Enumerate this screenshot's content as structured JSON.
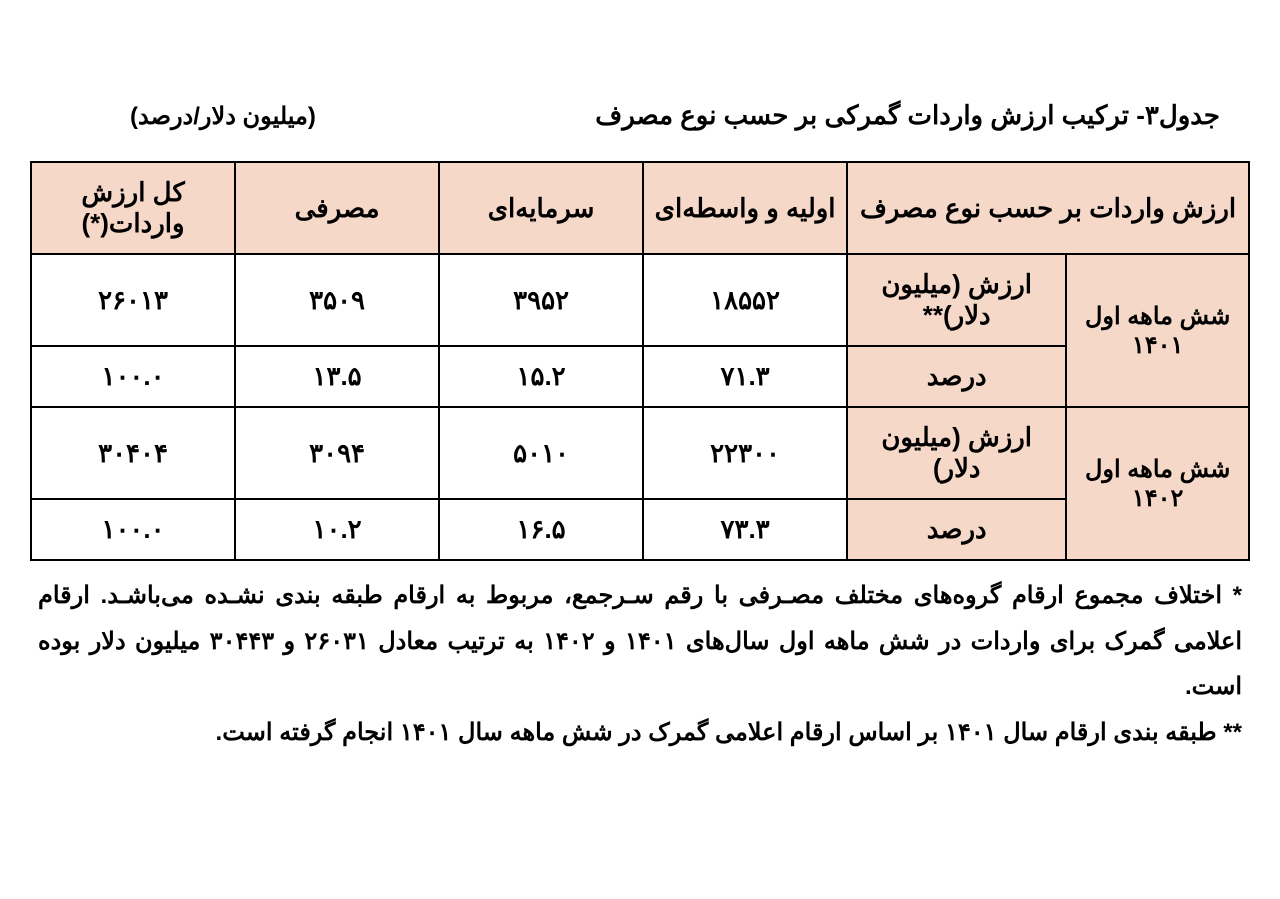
{
  "title": "جدول۳- ترکیب ارزش واردات گمرکی بر حسب نوع مصرف",
  "unit_label": "(میلیون دلار/درصد)",
  "colors": {
    "header_bg": "#f5d8c8",
    "border": "#000000",
    "text": "#000000",
    "page_bg": "#ffffff"
  },
  "table": {
    "columns": [
      "ارزش واردات بر حسب نوع مصرف",
      "اولیه و واسطه‌ای",
      "سرمایه‌ای",
      "مصرفی",
      "کل ارزش واردات(*)"
    ],
    "col_widths_pct": [
      33,
      16.75,
      16.75,
      16.75,
      16.75
    ],
    "header_fontsize": 26,
    "cell_fontsize": 26,
    "groups": [
      {
        "period": "شش ماهه اول ۱۴۰۱",
        "rows": [
          {
            "metric": "ارزش (میلیون دلار)**",
            "values": [
              "۱۸۵۵۲",
              "۳۹۵۲",
              "۳۵۰۹",
              "۲۶۰۱۳"
            ]
          },
          {
            "metric": "درصد",
            "values": [
              "۷۱.۳",
              "۱۵.۲",
              "۱۳.۵",
              "۱۰۰.۰"
            ]
          }
        ]
      },
      {
        "period": "شش ماهه اول ۱۴۰۲",
        "rows": [
          {
            "metric": "ارزش (میلیون دلار)",
            "values": [
              "۲۲۳۰۰",
              "۵۰۱۰",
              "۳۰۹۴",
              "۳۰۴۰۴"
            ]
          },
          {
            "metric": "درصد",
            "values": [
              "۷۳.۳",
              "۱۶.۵",
              "۱۰.۲",
              "۱۰۰.۰"
            ]
          }
        ]
      }
    ]
  },
  "footnotes": [
    "* اختلاف مجموع ارقام گروه‌های مختلف مصـرفی با رقم سـرجمع، مربوط به ارقام طبقه بندی نشـده می‌باشـد. ارقام اعلامی گمرک برای واردات در شش ماهه اول سال‌های ۱۴۰۱ و ۱۴۰۲ به ترتیب معادل ۲۶۰۳۱ و ۳۰۴۴۳ میلیون دلار بوده است.",
    "** طبقه بندی ارقام سال ۱۴۰۱ بر اساس ارقام اعلامی گمرک در شش ماهه سال ۱۴۰۱ انجام گرفته است."
  ]
}
